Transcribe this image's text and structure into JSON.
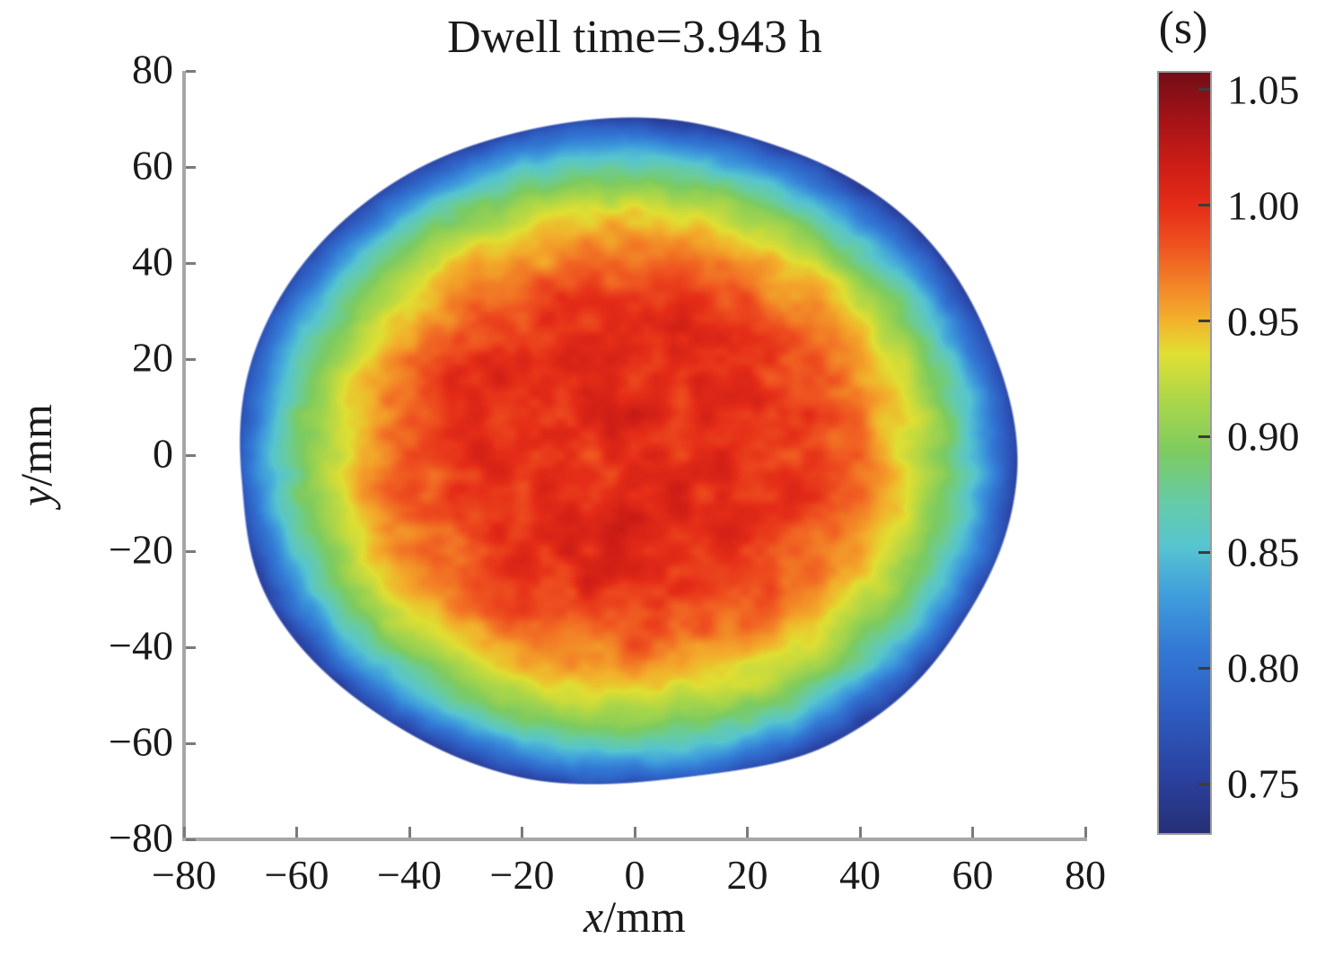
{
  "title": "Dwell time=3.943 h",
  "axes": {
    "xlabel": {
      "variable": "x",
      "unit": "/mm",
      "text": "x/mm"
    },
    "ylabel": {
      "variable": "y",
      "unit": "/mm",
      "text": "y/mm"
    },
    "xtick_labels": [
      "−80",
      "−60",
      "−40",
      "−20",
      "0",
      "20",
      "40",
      "60",
      "80"
    ],
    "ytick_labels": [
      "80",
      "60",
      "40",
      "20",
      "0",
      "−20",
      "−40",
      "−60",
      "−80"
    ]
  },
  "colorbar": {
    "unit_label": "(s)",
    "tick_labels": [
      "1.05",
      "1.00",
      "0.95",
      "0.90",
      "0.85",
      "0.80",
      "0.75"
    ],
    "range": [
      0.728,
      1.058
    ]
  },
  "chart_data": {
    "type": "heatmap",
    "title": "Dwell time=3.943 h",
    "xlabel": "x/mm",
    "ylabel": "y/mm",
    "xlim": [
      -80,
      80
    ],
    "ylim": [
      -80,
      80
    ],
    "xticks": [
      -80,
      -60,
      -40,
      -20,
      0,
      20,
      40,
      60,
      80
    ],
    "yticks": [
      -80,
      -60,
      -40,
      -20,
      0,
      20,
      40,
      60,
      80
    ],
    "grid": false,
    "colorbar_unit": "s",
    "colorbar_range": [
      0.728,
      1.058
    ],
    "colormap_name": "jet",
    "colormap_stops": [
      [
        0.73,
        "#263179"
      ],
      [
        0.75,
        "#2a3f9c"
      ],
      [
        0.78,
        "#2e5bc0"
      ],
      [
        0.808,
        "#3379d5"
      ],
      [
        0.832,
        "#409fdc"
      ],
      [
        0.853,
        "#57c5d0"
      ],
      [
        0.872,
        "#66cba6"
      ],
      [
        0.893,
        "#7ccb61"
      ],
      [
        0.915,
        "#aad64a"
      ],
      [
        0.936,
        "#e0df33"
      ],
      [
        0.95,
        "#f2b32c"
      ],
      [
        0.966,
        "#f38327"
      ],
      [
        0.983,
        "#ef5220"
      ],
      [
        1.0,
        "#e52d18"
      ],
      [
        1.018,
        "#cd1d16"
      ],
      [
        1.038,
        "#a31318"
      ],
      [
        1.058,
        "#740d16"
      ]
    ],
    "spot": {
      "shape": "noisy-disc",
      "center_mm": [
        -1.5,
        0.6
      ],
      "radius_mm": 69.6,
      "edge_irregularity_mm": 1.6,
      "radial_profile": {
        "r_mm": [
          0,
          8,
          16,
          24,
          32,
          38,
          43,
          47,
          50,
          53,
          56,
          59,
          62,
          65,
          68,
          70
        ],
        "value_s": [
          0.995,
          1.001,
          1.002,
          1.0,
          0.992,
          0.98,
          0.966,
          0.951,
          0.938,
          0.922,
          0.904,
          0.882,
          0.856,
          0.822,
          0.785,
          0.758
        ]
      },
      "noise_amplitude_s": 0.026,
      "noise_scale_mm": 4,
      "deep_blue_sector_deg": 45,
      "peak_value_s": 1.05,
      "min_value_s": 0.73
    }
  }
}
